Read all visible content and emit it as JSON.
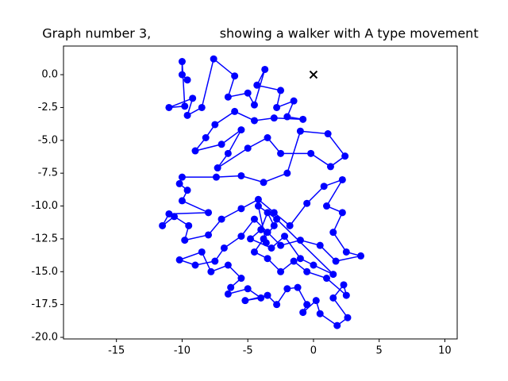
{
  "chart_data": {
    "type": "line",
    "title": "Graph number 3,                 showing a walker with A type movement",
    "x": [
      -9.6,
      -10,
      -10,
      -9.8,
      -11,
      -9.2,
      -9.6,
      -8.5,
      -7.6,
      -6,
      -6.5,
      -5,
      -4.5,
      -3.7,
      -4.3,
      -2.5,
      -2.8,
      -1.5,
      -2,
      -0.8,
      -3,
      -4.5,
      -6,
      -7.5,
      -8.2,
      -9,
      -7,
      -5.5,
      -6.5,
      -7.3,
      -5,
      -3.5,
      -2.5,
      -0.2,
      1.3,
      2.4,
      1.1,
      -1,
      -2,
      -3.8,
      -5.5,
      -7.4,
      -10,
      -10.2,
      -9.6,
      -10,
      -8,
      -11,
      -11.5,
      -10.6,
      -9.5,
      -9.8,
      -8,
      -7,
      -5.5,
      -4.2,
      -3,
      -1.8,
      -0.5,
      0.8,
      2.2,
      1,
      2.2,
      1.5,
      2.5,
      3.6,
      1.7,
      0.5,
      -1,
      -2.5,
      -3.5,
      -4.5,
      -5.5,
      -6.8,
      -7.5,
      -9,
      -10.2,
      -8.5,
      -7.8,
      -6.5,
      -5.5,
      -6.3,
      -6.5,
      -5,
      -4,
      -5.2,
      -3.5,
      -2.8,
      -2,
      -1.2,
      -0.5,
      -0.8,
      0.2,
      0.5,
      1.8,
      2.6,
      1.5,
      2.3,
      2.5,
      1,
      -0.5,
      -1.5,
      -2.5,
      -3.5,
      -4.5,
      -3.8,
      -3,
      -3.5,
      -4,
      -4.8,
      -3.2,
      -2.2,
      -1,
      0,
      1.5,
      -2.8,
      -4.2,
      -3.6
    ],
    "series": [
      {
        "color": "#0000ff",
        "values": [
          -0.4,
          0,
          1,
          -2.4,
          -2.5,
          -1.8,
          -3.1,
          -2.5,
          1.2,
          -0.1,
          -1.7,
          -1.4,
          -2.3,
          0.4,
          -0.8,
          -1.2,
          -2.5,
          -2,
          -3.2,
          -3.4,
          -3.3,
          -3.5,
          -2.8,
          -3.8,
          -4.8,
          -5.8,
          -5.3,
          -4.2,
          -6,
          -7.1,
          -5.6,
          -4.8,
          -6,
          -6,
          -7,
          -6.2,
          -4.5,
          -4.3,
          -7.5,
          -8.2,
          -7.7,
          -7.8,
          -7.8,
          -8.3,
          -8.8,
          -9.6,
          -10.5,
          -10.6,
          -11.5,
          -10.8,
          -11.5,
          -12.6,
          -12.2,
          -11,
          -10.2,
          -9.5,
          -10.5,
          -11.5,
          -9.8,
          -8.5,
          -8,
          -10,
          -10.5,
          -12,
          -13.5,
          -13.8,
          -14.2,
          -13,
          -12.6,
          -13,
          -12,
          -11,
          -12.3,
          -13.2,
          -14.2,
          -14.5,
          -14.1,
          -13.5,
          -15,
          -14.5,
          -15.5,
          -16.2,
          -16.7,
          -16.3,
          -17,
          -17.2,
          -16.8,
          -17.5,
          -16.3,
          -16.2,
          -17.5,
          -18.1,
          -17.2,
          -18.2,
          -19.1,
          -18.5,
          -17,
          -16,
          -16.8,
          -15.5,
          -15,
          -14.2,
          -15,
          -14,
          -13.5,
          -12.5,
          -11.5,
          -10.5,
          -11.8,
          -12.5,
          -13.2,
          -12.3,
          -14,
          -14.5,
          -15.2,
          -11,
          -10,
          -12.8
        ]
      }
    ],
    "start": {
      "x": 0,
      "y": 0,
      "color": "#000000"
    },
    "xlim": [
      -19.03,
      10.94
    ],
    "ylim": [
      -20.12,
      2.18
    ],
    "xticks": [
      -15,
      -10,
      -5,
      0,
      5,
      10
    ],
    "yticks": [
      {
        "value": -20,
        "label": "-20.0"
      },
      -17.5,
      {
        "value": -15,
        "label": "-15.0"
      },
      -12.5,
      {
        "value": -10,
        "label": "-10.0"
      },
      -7.5,
      {
        "value": -5,
        "label": "-5.0"
      },
      -2.5,
      {
        "value": 0,
        "label": "0.0"
      }
    ]
  }
}
